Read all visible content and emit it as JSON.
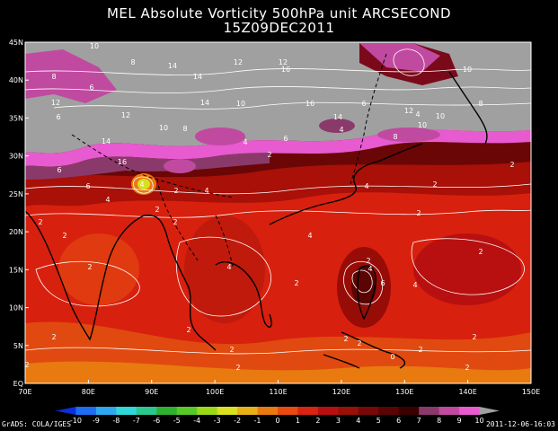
{
  "title": "MEL Absolute Vorticity 500hPa unit ARCSECOND",
  "subtitle": "15Z09DEC2011",
  "lat_labels": [
    "45N",
    "40N",
    "35N",
    "30N",
    "25N",
    "20N",
    "15N",
    "10N",
    "5N",
    "EQ"
  ],
  "lon_labels": [
    "70E",
    "80E",
    "90E",
    "100E",
    "110E",
    "120E",
    "130E",
    "140E",
    "150E"
  ],
  "colorbar_labels": [
    "-10",
    "-9",
    "-8",
    "-7",
    "-6",
    "-5",
    "-4",
    "-3",
    "-2",
    "-1",
    "0",
    "1",
    "2",
    "3",
    "4",
    "5",
    "6",
    "7",
    "8",
    "9",
    "10"
  ],
  "colorbar_colors": [
    "#0a2fd8",
    "#1e6cf0",
    "#2ea6f0",
    "#2ed8d8",
    "#28c890",
    "#30b030",
    "#58c828",
    "#9ad818",
    "#d8e020",
    "#e8b018",
    "#e87a10",
    "#e84a10",
    "#d82410",
    "#b81010",
    "#981008",
    "#780808",
    "#5a0404",
    "#3a0000",
    "#8a3a6a",
    "#c04aa0",
    "#e85ad0",
    "#a0a0a0"
  ],
  "contour_labels": [
    "10",
    "8",
    "8",
    "14",
    "12",
    "12",
    "14",
    "16",
    "10",
    "12",
    "14",
    "6",
    "12",
    "10",
    "8",
    "10",
    "6",
    "14",
    "16",
    "10",
    "12",
    "4",
    "6",
    "10",
    "8",
    "8",
    "4",
    "14",
    "16",
    "6",
    "6",
    "4",
    "6",
    "2",
    "4",
    "2",
    "4",
    "4",
    "4",
    "2",
    "2",
    "2",
    "2",
    "2",
    "4",
    "2",
    "2",
    "4",
    "2",
    "2",
    "4",
    "6",
    "4",
    "2",
    "2",
    "2",
    "2",
    "2",
    "2",
    "2",
    "2",
    "0",
    "2",
    "2",
    "2",
    "2"
  ],
  "credit_left": "GrADS: COLA/IGES",
  "credit_right": "2011-12-06-16:03"
}
